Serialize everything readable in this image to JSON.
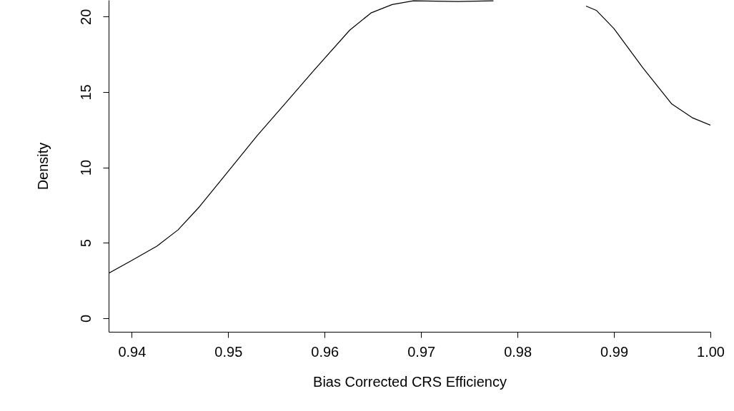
{
  "chart_data": {
    "type": "line",
    "xlabel": "Bias Corrected CRS Efficiency",
    "ylabel": "Density",
    "x": [
      0.9376,
      0.94,
      0.9426,
      0.9448,
      0.947,
      0.95,
      0.953,
      0.956,
      0.9589,
      0.9626,
      0.9648,
      0.967,
      0.9692,
      0.9738,
      0.9775,
      0.982,
      0.9871,
      0.9882,
      0.99,
      0.993,
      0.996,
      0.9981,
      1.0
    ],
    "series": [
      {
        "color": "#000000",
        "values": [
          2.98,
          3.83,
          4.78,
          5.86,
          7.38,
          9.74,
          12.1,
          14.3,
          16.45,
          19.1,
          20.24,
          20.8,
          21.05,
          21.0,
          21.05,
          null,
          20.7,
          20.4,
          19.2,
          16.6,
          14.2,
          13.3,
          12.8
        ]
      }
    ],
    "xlim": [
      0.9376,
      1.0
    ],
    "xticks": [
      0.94,
      0.95,
      0.96,
      0.97,
      0.98,
      0.99,
      {
        "value": 1.0,
        "label": "1.00"
      }
    ],
    "ylim": [
      -0.9,
      21.1
    ],
    "yticks": [
      0,
      5,
      10,
      15,
      20
    ],
    "grid": false,
    "marker": "none",
    "line_style": "solid"
  }
}
